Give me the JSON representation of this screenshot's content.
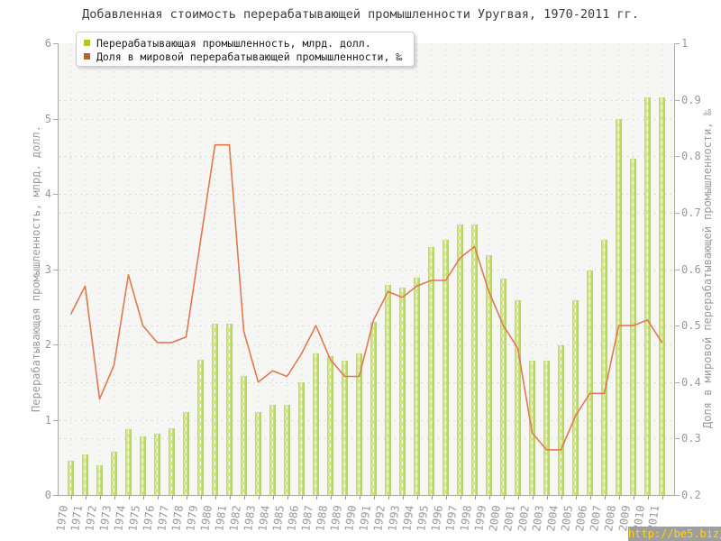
{
  "chart_data": {
    "type": "bar+line",
    "title": "Добавленная стоимость перерабатывающей промышленности Уругвая, 1970-2011 гг.",
    "categories": [
      "1970",
      "1971",
      "1972",
      "1973",
      "1974",
      "1975",
      "1976",
      "1977",
      "1978",
      "1979",
      "1980",
      "1981",
      "1982",
      "1983",
      "1984",
      "1985",
      "1986",
      "1987",
      "1988",
      "1989",
      "1990",
      "1991",
      "1992",
      "1993",
      "1994",
      "1995",
      "1996",
      "1997",
      "1998",
      "1999",
      "2000",
      "2001",
      "2002",
      "2003",
      "2004",
      "2005",
      "2006",
      "2007",
      "2008",
      "2009",
      "2010",
      "2011"
    ],
    "series": [
      {
        "name": "Перерабатывающая промышленность, млрд. долл.",
        "type": "bar",
        "axis": "left",
        "legend_color": "#b0cc0e",
        "bar_fill": "#cde57d",
        "values": [
          0.45,
          0.54,
          0.39,
          0.57,
          0.87,
          0.78,
          0.81,
          0.89,
          1.1,
          1.8,
          2.27,
          2.27,
          1.58,
          1.1,
          1.2,
          1.2,
          1.5,
          1.88,
          1.84,
          1.78,
          1.88,
          2.3,
          2.79,
          2.75,
          2.89,
          3.29,
          3.39,
          3.59,
          3.59,
          3.18,
          2.88,
          2.59,
          1.79,
          1.79,
          1.99,
          2.59,
          2.98,
          3.39,
          4.99,
          4.47,
          5.28,
          5.28
        ]
      },
      {
        "name": "Доля в мировой перерабатывающей промышленности, ‰",
        "type": "line",
        "axis": "right",
        "legend_color": "#cc5a1a",
        "line_color": "#e2794d",
        "values": [
          0.52,
          0.57,
          0.37,
          0.43,
          0.59,
          0.5,
          0.47,
          0.47,
          0.48,
          0.65,
          0.82,
          0.82,
          0.49,
          0.4,
          0.42,
          0.41,
          0.45,
          0.5,
          0.44,
          0.41,
          0.41,
          0.51,
          0.56,
          0.55,
          0.57,
          0.58,
          0.58,
          0.62,
          0.64,
          0.56,
          0.5,
          0.46,
          0.31,
          0.28,
          0.28,
          0.34,
          0.38,
          0.38,
          0.5,
          0.5,
          0.51,
          0.47
        ]
      }
    ],
    "left_axis": {
      "label": "Перерабатывающая промышленность, млрд. долл.",
      "min": 0,
      "max": 6,
      "ticks": [
        0,
        1,
        2,
        3,
        4,
        5,
        6
      ]
    },
    "right_axis": {
      "label": "Доля в мировой перерабатывающей промышленности, ‰",
      "min": 0.2,
      "max": 1,
      "ticks": [
        0.2,
        0.3,
        0.4,
        0.5,
        0.6,
        0.7,
        0.8,
        0.9,
        1
      ]
    },
    "grid": true,
    "legend_position": "top-left",
    "watermark": "http://be5.biz/"
  }
}
